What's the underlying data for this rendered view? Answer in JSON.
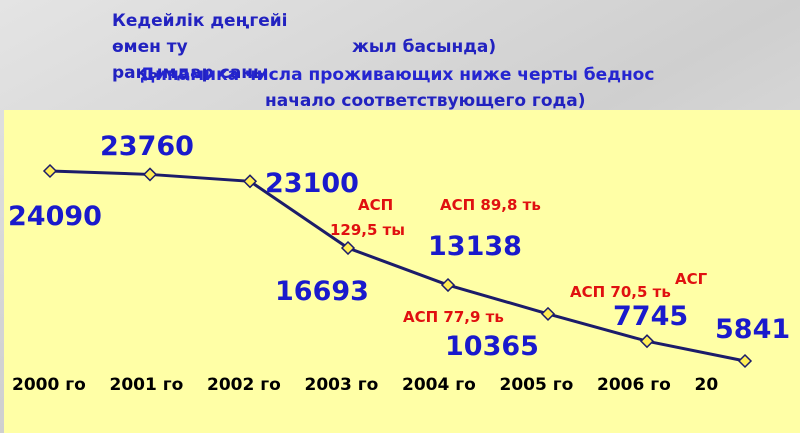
{
  "chart_data": {
    "type": "line",
    "title_lines": [
      "Кедейлік деңгейі",
      "өмен ту",
      "жыл басында)",
      "рақымдар саны",
      "Динамика числа проживающих ниже черты беднос",
      "начало соответствующего года)"
    ],
    "categories": [
      "2000 го",
      "2001 го",
      "2002 го",
      "2003 го",
      "2004 го",
      "2005 го",
      "2006 го",
      "20"
    ],
    "values": [
      24090,
      23760,
      23100,
      16693,
      13138,
      10365,
      7745,
      5841
    ],
    "color": "#1c1c6a",
    "annotations": [
      "АСП",
      "129,5 ты",
      "АСП 89,8 ть",
      "АСП 77,9 ть",
      "АСП 70,5 ть",
      "АСГ"
    ]
  }
}
